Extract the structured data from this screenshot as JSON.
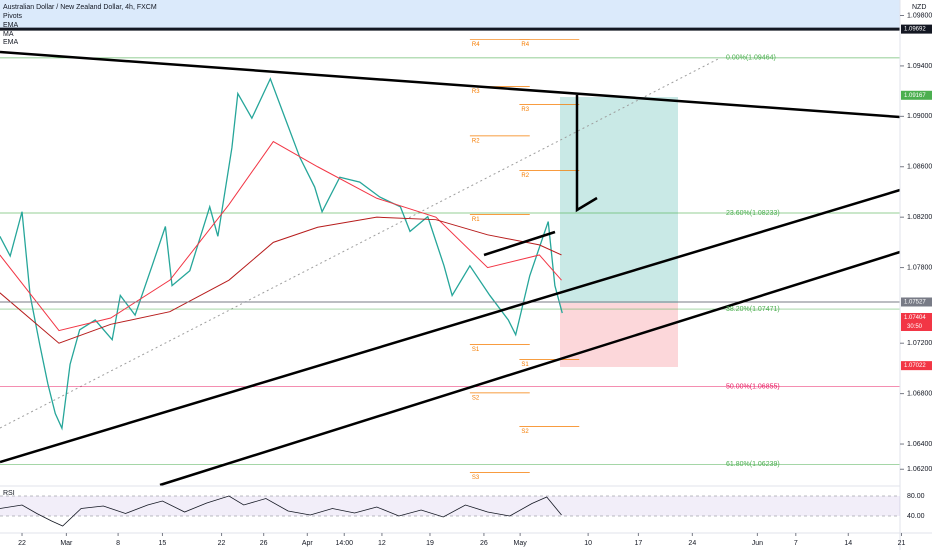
{
  "header": {
    "title": "Australian Dollar / New Zealand Dollar, 4h, FXCM",
    "indicators": [
      "Pivots",
      "EMA"
    ],
    "currency": "NZD"
  },
  "chart_data": [
    {
      "type": "line",
      "xlim": [
        -2.98,
        118.8
      ],
      "ylim": [
        1.06075,
        1.09923
      ],
      "xticks": [
        {
          "value": 0,
          "label": "22"
        },
        {
          "value": 6,
          "label": "Mar"
        },
        {
          "value": 13,
          "label": "8"
        },
        {
          "value": 19,
          "label": "15"
        },
        {
          "value": 27,
          "label": "22"
        },
        {
          "value": 32.7,
          "label": "26"
        },
        {
          "value": 38.6,
          "label": "Apr"
        },
        {
          "value": 43.6,
          "label": "14:00"
        },
        {
          "value": 48.7,
          "label": "12"
        },
        {
          "value": 55.2,
          "label": "19"
        },
        {
          "value": 62.5,
          "label": "26"
        },
        {
          "value": 67.4,
          "label": "May"
        },
        {
          "value": 76.6,
          "label": "10"
        },
        {
          "value": 83.4,
          "label": "17"
        },
        {
          "value": 90.7,
          "label": "24"
        },
        {
          "value": 99.5,
          "label": "Jun"
        },
        {
          "value": 104.7,
          "label": "7"
        },
        {
          "value": 111.8,
          "label": "14"
        },
        {
          "value": 119,
          "label": "21"
        }
      ],
      "yticks": [
        {
          "value": 1.098,
          "label": "1.09800"
        },
        {
          "value": 1.094,
          "label": "1.09400"
        },
        {
          "value": 1.09,
          "label": "1.09000"
        },
        {
          "value": 1.086,
          "label": "1.08600"
        },
        {
          "value": 1.082,
          "label": "1.08200"
        },
        {
          "value": 1.078,
          "label": "1.07800"
        },
        {
          "value": 1.072,
          "label": "1.07200"
        },
        {
          "value": 1.068,
          "label": "1.06800"
        },
        {
          "value": 1.064,
          "label": "1.06400"
        },
        {
          "value": 1.062,
          "label": "1.06200"
        }
      ],
      "series": [
        {
          "color": "#26a69a",
          "x": [
            -3,
            -1.6,
            0,
            1.1,
            2.4,
            3.5,
            4.5,
            5.4,
            6.5,
            7.8,
            9.9,
            12.2,
            13.3,
            15.3,
            17.6,
            19.4,
            20.3,
            22.7,
            25.4,
            26.5,
            28.4,
            29.2,
            31.1,
            33.6,
            35.6,
            37.6,
            39.6,
            40.6,
            43,
            45.7,
            48.4,
            51.2,
            52.5,
            54.9,
            57.1,
            58.2,
            60.6,
            63.3,
            65.8,
            66.8,
            68.7,
            71.2,
            72.1,
            73.1
          ],
          "values": [
            1.08048,
            1.07892,
            1.08243,
            1.07579,
            1.07189,
            1.06876,
            1.06642,
            1.06525,
            1.07032,
            1.07306,
            1.07384,
            1.07228,
            1.07579,
            1.07423,
            1.07814,
            1.08126,
            1.07657,
            1.07775,
            1.08282,
            1.08048,
            1.08751,
            1.09181,
            1.08985,
            1.09298,
            1.08985,
            1.08673,
            1.08439,
            1.08243,
            1.08517,
            1.08478,
            1.0836,
            1.08282,
            1.08087,
            1.08204,
            1.07814,
            1.07579,
            1.07814,
            1.07579,
            1.07384,
            1.07267,
            1.07735,
            1.08165,
            1.07657,
            1.07439
          ]
        },
        {
          "name": "EMA",
          "color": "#f23645",
          "x": [
            -3,
            5,
            12,
            20,
            28,
            34,
            40,
            48,
            56,
            63,
            70,
            73
          ],
          "values": [
            1.079,
            1.073,
            1.074,
            1.077,
            1.083,
            1.088,
            1.086,
            1.0835,
            1.082,
            1.078,
            1.079,
            1.077
          ]
        },
        {
          "name": "MA",
          "color": "#b71c1c",
          "x": [
            -3,
            5,
            12,
            20,
            28,
            34,
            40,
            48,
            56,
            63,
            70,
            73
          ],
          "values": [
            1.076,
            1.072,
            1.0735,
            1.0745,
            1.077,
            1.08,
            1.0812,
            1.082,
            1.0818,
            1.0806,
            1.0798,
            1.079
          ]
        }
      ],
      "fib_levels": [
        {
          "value": 1.09464,
          "label": "0.00%(1.09464)",
          "color": "#4caf50"
        },
        {
          "value": 1.08233,
          "label": "23.60%(1.08233)",
          "color": "#4caf50"
        },
        {
          "value": 1.07471,
          "label": "38.20%(1.07471)",
          "color": "#4caf50"
        },
        {
          "value": 1.06855,
          "label": "50.00%(1.06855)",
          "color": "#e91e63"
        },
        {
          "value": 1.06239,
          "label": "61.80%(1.06239)",
          "color": "#4caf50"
        }
      ],
      "pivots": [
        {
          "xrange": [
            60.6,
            68.7
          ],
          "levels": [
            {
              "label": "R4",
              "value": 1.09611
            },
            {
              "label": "R3",
              "value": 1.09236
            },
            {
              "label": "R2",
              "value": 1.08845
            },
            {
              "label": "R1",
              "value": 1.0822
            },
            {
              "label": "S1",
              "value": 1.07189
            },
            {
              "label": "S2",
              "value": 1.06806
            },
            {
              "label": "S3",
              "value": 1.06173
            }
          ]
        },
        {
          "xrange": [
            67.3,
            75.4
          ],
          "levels": [
            {
              "label": "R4",
              "value": 1.09611
            },
            {
              "label": "R3",
              "value": 1.09095
            },
            {
              "label": "R2",
              "value": 1.08571
            },
            {
              "label": "S1",
              "value": 1.07071
            },
            {
              "label": "S2",
              "value": 1.0654
            }
          ]
        }
      ],
      "pivot_color": "#f57c00",
      "price_tags": [
        {
          "value": 1.09692,
          "color": "#131722",
          "line_width": 3
        },
        {
          "value": 1.09167,
          "color": "#4caf50"
        },
        {
          "value": 1.07527,
          "color": "#787b86",
          "line_width": 1
        },
        {
          "value": 1.07404,
          "color": "#f23645",
          "countdown": "30:50"
        },
        {
          "value": 1.07022,
          "color": "#f23645"
        }
      ]
    },
    {
      "type": "line",
      "title": "RSI",
      "color": "#7e57c2",
      "ylim": [
        12,
        96
      ],
      "yticks": [
        {
          "value": 80,
          "label": "80.00"
        },
        {
          "value": 40,
          "label": "40.00"
        }
      ],
      "x": [
        -3,
        0,
        2,
        4,
        5.5,
        8,
        11,
        14,
        17,
        19,
        22,
        25,
        28,
        30,
        33,
        36,
        39,
        42,
        45,
        48,
        51,
        54,
        57,
        60,
        63,
        66,
        69,
        71,
        73
      ],
      "values": [
        55,
        62,
        45,
        30,
        20,
        55,
        60,
        45,
        62,
        70,
        48,
        66,
        80,
        62,
        75,
        50,
        42,
        55,
        46,
        58,
        40,
        52,
        38,
        62,
        48,
        40,
        65,
        78,
        42
      ]
    }
  ]
}
